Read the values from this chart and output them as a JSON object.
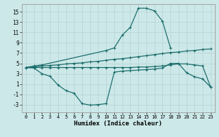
{
  "xlabel": "Humidex (Indice chaleur)",
  "background_color": "#cce8e8",
  "grid_color": "#b8d4d4",
  "line_color": "#1a6b6b",
  "xlim": [
    -0.5,
    23.5
  ],
  "ylim": [
    -4.5,
    16.5
  ],
  "yticks": [
    -3,
    -1,
    1,
    3,
    5,
    7,
    9,
    11,
    13,
    15
  ],
  "xticks": [
    0,
    1,
    2,
    3,
    4,
    5,
    6,
    7,
    8,
    9,
    10,
    11,
    12,
    13,
    14,
    15,
    16,
    17,
    18,
    19,
    20,
    21,
    22,
    23
  ],
  "curve1_x": [
    0,
    1,
    2,
    10,
    11,
    12,
    13,
    14,
    15,
    16,
    17,
    18
  ],
  "curve1_y": [
    4.2,
    4.5,
    4.7,
    7.5,
    8.0,
    10.5,
    12.0,
    15.7,
    15.7,
    15.2,
    13.2,
    8.0
  ],
  "curve2_x": [
    0,
    1,
    2,
    3,
    4,
    5,
    6,
    7,
    8,
    9,
    10,
    11,
    12,
    13,
    14,
    15,
    16,
    17,
    18,
    19,
    20,
    21,
    22,
    23
  ],
  "curve2_y": [
    4.2,
    4.3,
    4.5,
    4.6,
    4.7,
    4.9,
    5.0,
    5.1,
    5.3,
    5.4,
    5.6,
    5.8,
    5.9,
    6.1,
    6.3,
    6.5,
    6.7,
    6.9,
    7.1,
    7.2,
    7.4,
    7.5,
    7.7,
    7.8
  ],
  "curve3_x": [
    0,
    1,
    2,
    3,
    4,
    5,
    6,
    7,
    8,
    9,
    10,
    11,
    12,
    13,
    14,
    15,
    16,
    17,
    18,
    19,
    20,
    21,
    22,
    23
  ],
  "curve3_y": [
    4.2,
    4.1,
    3.0,
    2.5,
    0.8,
    -0.3,
    -0.8,
    -2.8,
    -3.1,
    -3.0,
    -2.8,
    3.3,
    3.5,
    3.6,
    3.7,
    3.8,
    3.9,
    4.1,
    5.0,
    5.0,
    3.2,
    2.4,
    2.0,
    0.4
  ],
  "curve4_x": [
    0,
    1,
    2,
    3,
    4,
    5,
    6,
    7,
    8,
    9,
    10,
    11,
    12,
    13,
    14,
    15,
    16,
    17,
    18,
    19,
    20,
    21,
    22,
    23
  ],
  "curve4_y": [
    4.2,
    4.2,
    4.2,
    4.2,
    4.2,
    4.2,
    4.2,
    4.2,
    4.2,
    4.2,
    4.2,
    4.2,
    4.2,
    4.2,
    4.3,
    4.3,
    4.4,
    4.5,
    4.7,
    4.9,
    4.9,
    4.7,
    4.5,
    0.4
  ]
}
